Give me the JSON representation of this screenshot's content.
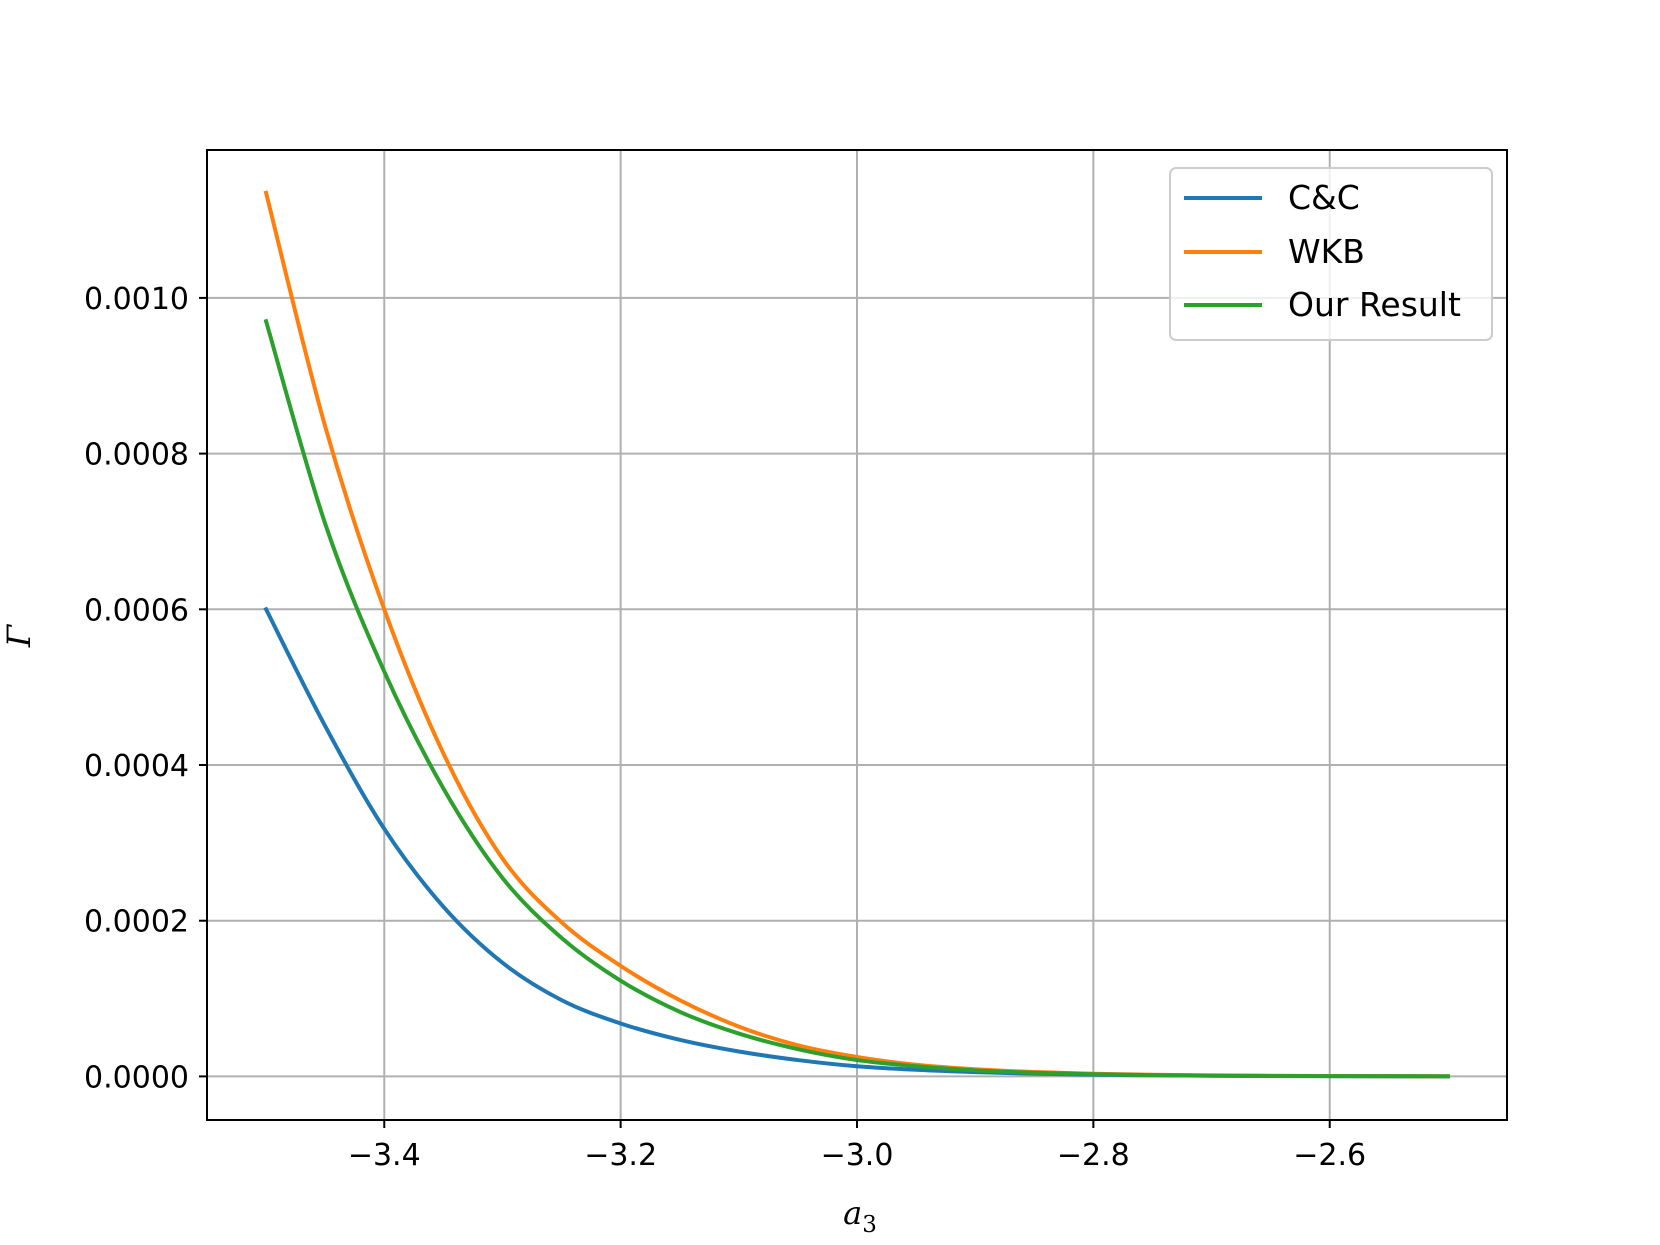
{
  "chart_data": {
    "type": "line",
    "xlabel": "a",
    "xlabel_sub": "3",
    "ylabel": "Γ",
    "xlim": [
      -3.55,
      -2.45
    ],
    "ylim": [
      -5.6e-05,
      0.00119
    ],
    "xticks": [
      -3.4,
      -3.2,
      -3.0,
      -2.8,
      -2.6
    ],
    "xtick_labels": [
      "−3.4",
      "−3.2",
      "−3.0",
      "−2.8",
      "−2.6"
    ],
    "yticks": [
      0.0,
      0.0002,
      0.0004,
      0.0006,
      0.0008,
      0.001
    ],
    "ytick_labels": [
      "0.0000",
      "0.0002",
      "0.0004",
      "0.0006",
      "0.0008",
      "0.0010"
    ],
    "grid": true,
    "legend_position": "top-right",
    "x": [
      -3.5,
      -3.45,
      -3.4,
      -3.35,
      -3.3,
      -3.25,
      -3.2,
      -3.15,
      -3.1,
      -3.05,
      -3.0,
      -2.95,
      -2.9,
      -2.85,
      -2.8,
      -2.75,
      -2.7,
      -2.65,
      -2.6,
      -2.55,
      -2.5
    ],
    "series": [
      {
        "name": "C&C",
        "color": "#1f77b4",
        "values": [
          0.0006,
          0.00045,
          0.000318,
          0.000218,
          0.000146,
          9.8e-05,
          6.8e-05,
          4.7e-05,
          3.2e-05,
          2.1e-05,
          1.3e-05,
          8.5e-06,
          5.5e-06,
          3.5e-06,
          2.2e-06,
          1.4e-06,
          9e-07,
          5e-07,
          3e-07,
          2e-07,
          1e-07
        ]
      },
      {
        "name": "WKB",
        "color": "#ff7f0e",
        "values": [
          0.001135,
          0.000835,
          0.0006,
          0.000415,
          0.00028,
          0.000198,
          0.000142,
          9.8e-05,
          6.4e-05,
          4e-05,
          2.5e-05,
          1.5e-05,
          9.2e-06,
          5.6e-06,
          3.4e-06,
          2.1e-06,
          1.3e-06,
          8e-07,
          5e-07,
          3e-07,
          2e-07
        ]
      },
      {
        "name": "Our Result",
        "color": "#2ca02c",
        "values": [
          0.00097,
          0.00071,
          0.00052,
          0.00037,
          0.000255,
          0.000178,
          0.000123,
          8.3e-05,
          5.5e-05,
          3.5e-05,
          2.1e-05,
          1.3e-05,
          7.8e-06,
          4.7e-06,
          2.8e-06,
          1.7e-06,
          1e-06,
          6e-07,
          4e-07,
          2e-07,
          1e-07
        ]
      }
    ]
  }
}
